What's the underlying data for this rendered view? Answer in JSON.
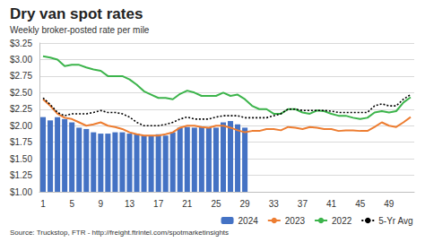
{
  "chart_data": {
    "type": "bar",
    "title": "Dry van spot rates",
    "subtitle": "Weekly broker-posted rate per mile",
    "source": "Source: Truckstop, FTR - http://freight.ftrintel.com/spotmarketinsights",
    "categories": [
      "1",
      null,
      null,
      null,
      "5",
      null,
      null,
      null,
      "9",
      null,
      null,
      null,
      "13",
      null,
      null,
      null,
      "17",
      null,
      null,
      null,
      "21",
      null,
      null,
      null,
      "25",
      null,
      null,
      null,
      "29",
      null,
      null,
      null,
      "33",
      null,
      null,
      null,
      "37",
      null,
      null,
      null,
      "41",
      null,
      null,
      null,
      "45",
      null,
      null,
      null,
      "49",
      null,
      null,
      null
    ],
    "series": [
      {
        "name": "2024",
        "type": "bar",
        "color": "#4472c4",
        "values": [
          2.13,
          2.08,
          2.13,
          2.1,
          2.05,
          1.97,
          1.95,
          1.9,
          1.88,
          1.88,
          1.9,
          1.9,
          1.88,
          1.88,
          1.85,
          1.85,
          1.87,
          1.85,
          1.9,
          1.97,
          1.98,
          1.97,
          1.98,
          1.97,
          1.97,
          2.05,
          2.07,
          2.02,
          1.97,
          null,
          null,
          null,
          null,
          null,
          null,
          null,
          null,
          null,
          null,
          null,
          null,
          null,
          null,
          null,
          null,
          null,
          null,
          null,
          null,
          null,
          null,
          null
        ]
      },
      {
        "name": "2023",
        "type": "line",
        "color": "#ed7d31",
        "marker": "none",
        "line_style": "solid",
        "values": [
          2.4,
          2.3,
          2.18,
          2.12,
          2.1,
          2.05,
          2.0,
          2.02,
          2.05,
          2.0,
          1.98,
          1.95,
          1.9,
          1.87,
          1.85,
          1.85,
          1.85,
          1.87,
          1.9,
          1.97,
          2.0,
          2.0,
          1.98,
          1.97,
          2.0,
          2.0,
          1.97,
          1.93,
          1.9,
          1.92,
          1.92,
          1.95,
          1.95,
          1.93,
          1.98,
          1.97,
          1.95,
          1.98,
          1.97,
          1.95,
          1.95,
          1.92,
          1.93,
          1.93,
          1.92,
          1.92,
          1.98,
          2.05,
          2.0,
          1.98,
          2.05,
          2.13
        ]
      },
      {
        "name": "2022",
        "type": "line",
        "color": "#3cb44b",
        "marker": "none",
        "line_style": "solid",
        "values": [
          3.05,
          3.03,
          3.0,
          2.9,
          2.92,
          2.92,
          2.88,
          2.85,
          2.83,
          2.75,
          2.75,
          2.75,
          2.7,
          2.62,
          2.52,
          2.47,
          2.42,
          2.42,
          2.4,
          2.48,
          2.53,
          2.5,
          2.45,
          2.45,
          2.45,
          2.5,
          2.45,
          2.47,
          2.4,
          2.3,
          2.25,
          2.25,
          2.18,
          2.18,
          2.25,
          2.25,
          2.2,
          2.18,
          2.23,
          2.22,
          2.18,
          2.15,
          2.15,
          2.12,
          2.1,
          2.12,
          2.2,
          2.22,
          2.2,
          2.22,
          2.35,
          2.43
        ]
      },
      {
        "name": "5-Yr Avg",
        "type": "line",
        "color": "#000000",
        "marker": "none",
        "line_style": "dotted",
        "values": [
          2.42,
          2.32,
          2.2,
          2.15,
          2.18,
          2.18,
          2.18,
          2.2,
          2.23,
          2.2,
          2.2,
          2.18,
          2.13,
          2.05,
          2.0,
          2.0,
          2.0,
          2.02,
          2.05,
          2.1,
          2.13,
          2.1,
          2.1,
          2.1,
          2.13,
          2.15,
          2.15,
          2.15,
          2.12,
          2.12,
          2.12,
          2.12,
          2.15,
          2.18,
          2.25,
          2.25,
          2.23,
          2.23,
          2.23,
          2.23,
          2.22,
          2.2,
          2.2,
          2.2,
          2.2,
          2.2,
          2.3,
          2.33,
          2.3,
          2.3,
          2.4,
          2.47
        ]
      }
    ],
    "ylim": [
      1.0,
      3.25
    ],
    "yticks": [
      {
        "value": 1.0,
        "label": "$1.00"
      },
      {
        "value": 1.25,
        "label": "$1.25"
      },
      {
        "value": 1.5,
        "label": "$1.50"
      },
      {
        "value": 1.75,
        "label": "$1.75"
      },
      {
        "value": 2.0,
        "label": "$2.00"
      },
      {
        "value": 2.25,
        "label": "$2.25"
      },
      {
        "value": 2.5,
        "label": "$2.50"
      },
      {
        "value": 2.75,
        "label": "$2.75"
      },
      {
        "value": 3.0,
        "label": "$3.00"
      },
      {
        "value": 3.25,
        "label": "$3.25"
      }
    ],
    "grid": true,
    "legend": "bottom"
  }
}
